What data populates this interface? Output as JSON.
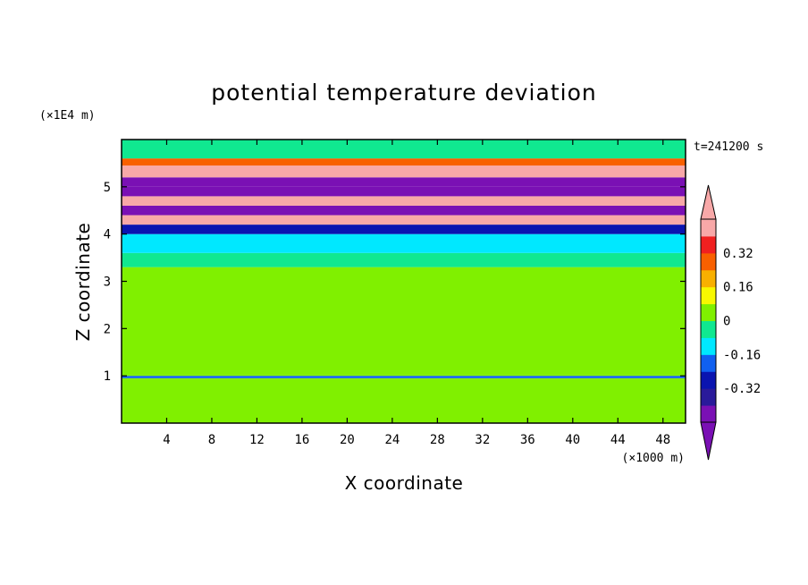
{
  "chart_data": {
    "type": "heatmap",
    "title": "potential temperature deviation",
    "xlabel": "X coordinate",
    "ylabel": "Z coordinate",
    "x_unit": "(×1000 m)",
    "y_unit": "(×1E4 m)",
    "time_label": "t=241200 s",
    "xlim": [
      0,
      50
    ],
    "ylim": [
      0,
      6
    ],
    "x_ticks": [
      4,
      8,
      12,
      16,
      20,
      24,
      28,
      32,
      36,
      40,
      44,
      48
    ],
    "y_ticks": [
      1,
      2,
      3,
      4,
      5
    ],
    "colorbar": {
      "levels": [
        -0.48,
        -0.4,
        -0.32,
        -0.24,
        -0.16,
        -0.08,
        0,
        0.08,
        0.16,
        0.24,
        0.32,
        0.4,
        0.48
      ],
      "colors": [
        "#7a10b4",
        "#2a1a9a",
        "#0a14b0",
        "#1060f0",
        "#00e8ff",
        "#10e890",
        "#80f000",
        "#f8f800",
        "#f8b000",
        "#f86000",
        "#f02020",
        "#f8a8a8"
      ],
      "tick_labels": [
        "0.32",
        "0.16",
        "0",
        "-0.16",
        "-0.32"
      ],
      "tick_values": [
        0.32,
        0.16,
        0,
        -0.16,
        -0.32
      ],
      "extend": "both"
    },
    "bands": [
      {
        "z": [
          0.0,
          0.95
        ],
        "value": 0.02
      },
      {
        "z": [
          0.95,
          1.0
        ],
        "value": -0.2
      },
      {
        "z": [
          1.0,
          3.3
        ],
        "value": 0.03
      },
      {
        "z": [
          3.3,
          3.6
        ],
        "value": -0.05
      },
      {
        "z": [
          3.6,
          4.0
        ],
        "value": -0.1
      },
      {
        "z": [
          4.0,
          4.2
        ],
        "value": -0.3
      },
      {
        "z": [
          4.2,
          4.4
        ],
        "value": 0.5
      },
      {
        "z": [
          4.4,
          4.6
        ],
        "value": -0.45
      },
      {
        "z": [
          4.6,
          4.8
        ],
        "value": 0.5
      },
      {
        "z": [
          4.8,
          5.0
        ],
        "value": -0.5
      },
      {
        "z": [
          5.0,
          5.2
        ],
        "value": -0.45
      },
      {
        "z": [
          5.2,
          5.45
        ],
        "value": 0.5
      },
      {
        "z": [
          5.45,
          5.6
        ],
        "value": 0.3
      },
      {
        "z": [
          5.6,
          6.0
        ],
        "value": -0.02
      }
    ]
  }
}
